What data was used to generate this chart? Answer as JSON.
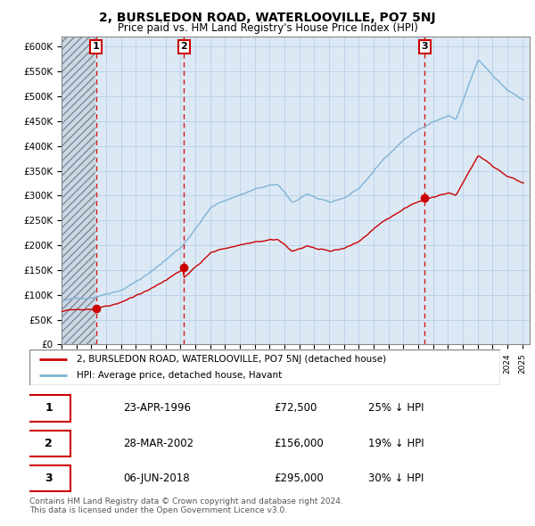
{
  "title": "2, BURSLEDON ROAD, WATERLOOVILLE, PO7 5NJ",
  "subtitle": "Price paid vs. HM Land Registry's House Price Index (HPI)",
  "ylim": [
    0,
    620000
  ],
  "yticks": [
    0,
    50000,
    100000,
    150000,
    200000,
    250000,
    300000,
    350000,
    400000,
    450000,
    500000,
    550000,
    600000
  ],
  "ytick_labels": [
    "£0",
    "£50K",
    "£100K",
    "£150K",
    "£200K",
    "£250K",
    "£300K",
    "£350K",
    "£400K",
    "£450K",
    "£500K",
    "£550K",
    "£600K"
  ],
  "sale_years": [
    1996.31,
    2002.24,
    2018.43
  ],
  "sale_prices": [
    72500,
    156000,
    295000
  ],
  "sale_dates_str": [
    "23-APR-1996",
    "28-MAR-2002",
    "06-JUN-2018"
  ],
  "sale_prices_str": [
    "£72,500",
    "£156,000",
    "£295,000"
  ],
  "sale_hpi_str": [
    "25% ↓ HPI",
    "19% ↓ HPI",
    "30% ↓ HPI"
  ],
  "legend_line1": "2, BURSLEDON ROAD, WATERLOOVILLE, PO7 5NJ (detached house)",
  "legend_line2": "HPI: Average price, detached house, Havant",
  "footer1": "Contains HM Land Registry data © Crown copyright and database right 2024.",
  "footer2": "This data is licensed under the Open Government Licence v3.0.",
  "property_color": "#cc0000",
  "hpi_color": "#7fb3d3",
  "background_color": "#dce9f5",
  "hatch_bg_color": "#c8d8e8"
}
